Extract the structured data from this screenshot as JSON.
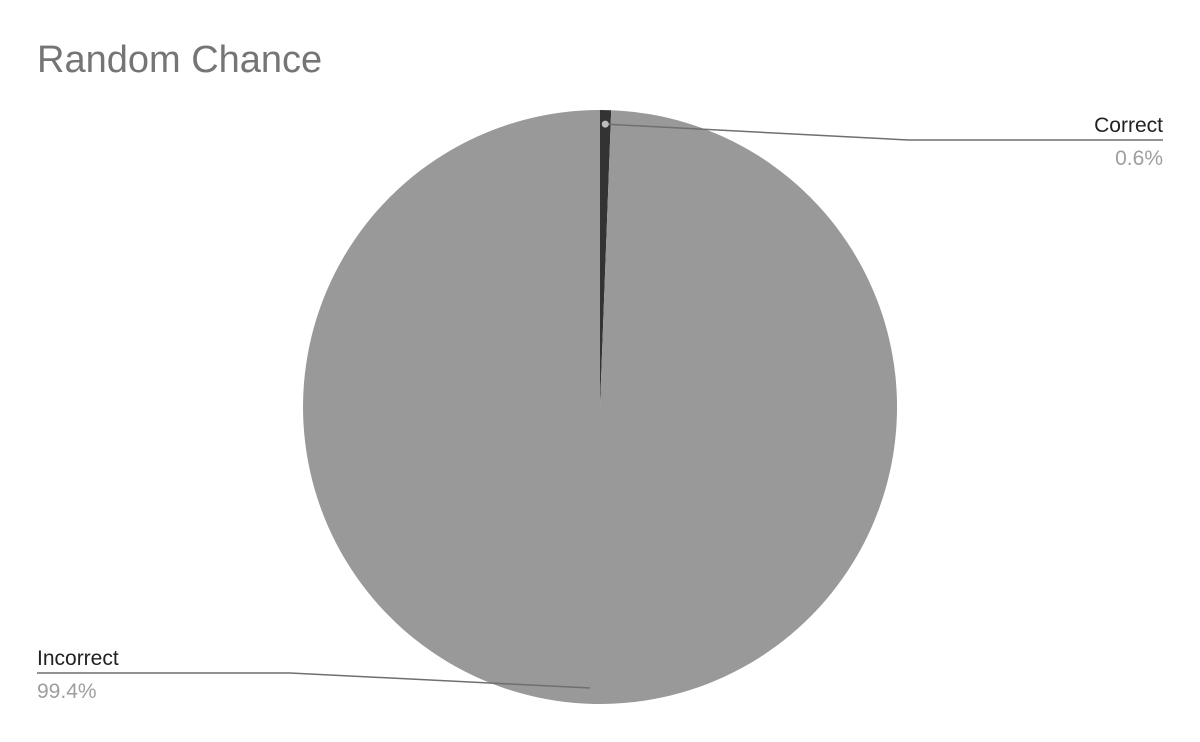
{
  "chart_data": {
    "type": "pie",
    "title": "Random Chance",
    "slices": [
      {
        "label": "Correct",
        "value": 0.6,
        "value_label": "0.6%",
        "color": "#333333"
      },
      {
        "label": "Incorrect",
        "value": 99.4,
        "value_label": "99.4%",
        "color": "#999999"
      }
    ],
    "label_color": "#222222",
    "value_label_color": "#9e9e9e",
    "leader_line_color": "#6f6f6f",
    "legend": "none"
  }
}
